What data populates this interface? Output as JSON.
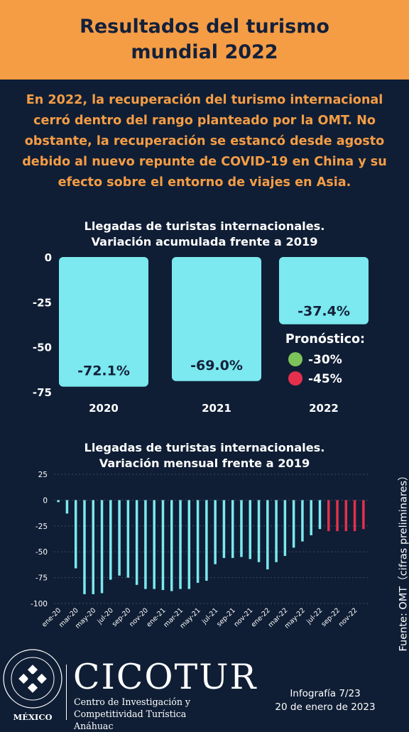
{
  "header": {
    "title": "Resultados del turismo mundial 2022"
  },
  "intro": "En 2022, la recuperación del turismo internacional cerró dentro del rango planteado por la OMT. No obstante, la recuperación se estancó desde agosto debido al nuevo repunte de COVID-19 en China y su efecto sobre el entorno de viajes en Asia.",
  "chart1": {
    "title_line1": "Llegadas de turistas internacionales.",
    "title_line2": "Variación acumulada frente a 2019"
  },
  "chart2": {
    "title_line1": "Llegadas de turistas internacionales.",
    "title_line2": "Variación mensual frente a 2019"
  },
  "forecast": {
    "label": "Pronóstico:",
    "items": [
      {
        "label": "-30%",
        "color": "#7cc35a"
      },
      {
        "label": "-45%",
        "color": "#e4304d"
      }
    ]
  },
  "source": "Fuente: OMT（cifras preliminares）",
  "footer": {
    "brand": "CICOTUR",
    "subtitle_line1": "Centro de Investigación y",
    "subtitle_line2": "Competitividad Turística Anáhuac",
    "infografia": "Infografía 7/23",
    "date": "20 de enero de 2023",
    "logo_text": "MÉXICO"
  },
  "colors": {
    "bar": "#7be9ef",
    "forecast_bar": "#e4304d",
    "background": "#0f1e35",
    "header": "#f59d45"
  },
  "chart_data": [
    {
      "type": "bar",
      "title": "Llegadas de turistas internacionales. Variación acumulada frente a 2019",
      "categories": [
        "2020",
        "2021",
        "2022"
      ],
      "values": [
        -72.1,
        -69.0,
        -37.4
      ],
      "data_labels": [
        "-72.1%",
        "-69.0%",
        "-37.4%"
      ],
      "yticks": [
        "0",
        "-25",
        "-50",
        "-75"
      ],
      "ylim": [
        -75,
        0
      ],
      "grid": false
    },
    {
      "type": "bar",
      "title": "Llegadas de turistas internacionales. Variación mensual frente a 2019",
      "categories": [
        "ene-20",
        "feb-20",
        "mar-20",
        "abr-20",
        "may-20",
        "jun-20",
        "jul-20",
        "ago-20",
        "sep-20",
        "oct-20",
        "nov-20",
        "dic-20",
        "ene-21",
        "feb-21",
        "mar-21",
        "abr-21",
        "may-21",
        "jun-21",
        "jul-21",
        "ago-21",
        "sep-21",
        "oct-21",
        "nov-21",
        "dic-21",
        "ene-22",
        "feb-22",
        "mar-22",
        "abr-22",
        "may-22",
        "jun-22",
        "jul-22",
        "ago-22",
        "sep-22",
        "oct-22",
        "nov-22",
        "dic-22"
      ],
      "tick_labels": [
        "ene-20",
        "mar-20",
        "may-20",
        "jul-20",
        "sep-20",
        "nov-20",
        "ene-21",
        "mar-21",
        "may-21",
        "jul-21",
        "sep-21",
        "nov-21",
        "ene-22",
        "mar-22",
        "may-22",
        "jul-22",
        "sep-22",
        "nov-22"
      ],
      "values": [
        -2,
        -13,
        -66,
        -91,
        -91,
        -90,
        -77,
        -73,
        -75,
        -82,
        -86,
        -86,
        -87,
        -88,
        -86,
        -86,
        -80,
        -78,
        -62,
        -56,
        -56,
        -55,
        -57,
        -60,
        -67,
        -60,
        -54,
        -46,
        -40,
        -34,
        -28,
        -30,
        -30,
        -30,
        -30,
        -28
      ],
      "forecast_from_index": 31,
      "yticks": [
        "25",
        "0",
        "-25",
        "-50",
        "-75",
        "-100"
      ],
      "ylim": [
        -100,
        25
      ],
      "grid": true
    }
  ]
}
